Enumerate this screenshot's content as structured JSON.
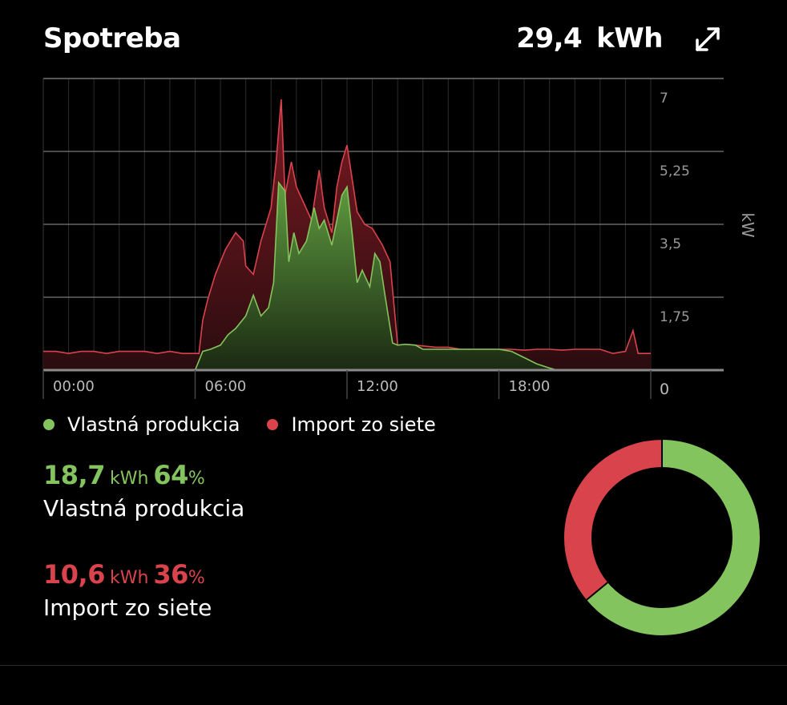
{
  "header": {
    "title": "Spotreba",
    "total_value": "29,4",
    "total_unit": "kWh"
  },
  "icons": {
    "expand": "expand-arrows-icon"
  },
  "colors": {
    "own": "#84c45e",
    "import": "#d9434c",
    "grid": "#6b6b6b",
    "axis_text": "#9a9a9a"
  },
  "legend": {
    "own_label": "Vlastná produkcia",
    "import_label": "Import zo siete"
  },
  "stats": {
    "own": {
      "value": "18,7",
      "unit": "kWh",
      "percent_value": "64",
      "percent_sign": "%",
      "label": "Vlastná produkcia"
    },
    "import": {
      "value": "10,6",
      "unit": "kWh",
      "percent_value": "36",
      "percent_sign": "%",
      "label": "Import zo siete"
    }
  },
  "donut": {
    "own_fraction": 0.64,
    "import_fraction": 0.36
  },
  "chart_data": {
    "type": "area",
    "xlabel": "",
    "ylabel": "kW",
    "ylim": [
      0,
      7
    ],
    "yticks": [
      {
        "value": 0,
        "label": "0"
      },
      {
        "value": 1.75,
        "label": "1,75"
      },
      {
        "value": 3.5,
        "label": "3,5"
      },
      {
        "value": 5.25,
        "label": "5,25"
      },
      {
        "value": 7,
        "label": "7"
      }
    ],
    "xticks": [
      {
        "hour": 0,
        "label": "00:00"
      },
      {
        "hour": 6,
        "label": "06:00"
      },
      {
        "hour": 12,
        "label": "12:00"
      },
      {
        "hour": 18,
        "label": "18:00"
      }
    ],
    "xlim": [
      0,
      24
    ],
    "grid": true,
    "series": [
      {
        "name": "Import zo siete",
        "points": [
          [
            0,
            0.45
          ],
          [
            0.5,
            0.45
          ],
          [
            1,
            0.4
          ],
          [
            1.5,
            0.45
          ],
          [
            2,
            0.45
          ],
          [
            2.5,
            0.4
          ],
          [
            3,
            0.45
          ],
          [
            3.5,
            0.45
          ],
          [
            4,
            0.45
          ],
          [
            4.5,
            0.4
          ],
          [
            5,
            0.45
          ],
          [
            5.5,
            0.4
          ],
          [
            6,
            0.4
          ],
          [
            6.15,
            0.4
          ],
          [
            6.3,
            1.2
          ],
          [
            6.5,
            1.7
          ],
          [
            6.8,
            2.3
          ],
          [
            7.2,
            2.9
          ],
          [
            7.6,
            3.3
          ],
          [
            7.9,
            3.1
          ],
          [
            8,
            2.5
          ],
          [
            8.3,
            2.3
          ],
          [
            8.6,
            3.1
          ],
          [
            9,
            3.9
          ],
          [
            9.2,
            5.0
          ],
          [
            9.4,
            6.5
          ],
          [
            9.55,
            4.2
          ],
          [
            9.8,
            5.0
          ],
          [
            10,
            4.4
          ],
          [
            10.3,
            4.0
          ],
          [
            10.6,
            3.6
          ],
          [
            10.9,
            4.8
          ],
          [
            11.1,
            3.9
          ],
          [
            11.4,
            3.3
          ],
          [
            11.6,
            4.4
          ],
          [
            11.8,
            5.0
          ],
          [
            12,
            5.4
          ],
          [
            12.2,
            4.6
          ],
          [
            12.4,
            3.8
          ],
          [
            12.7,
            3.5
          ],
          [
            13,
            3.4
          ],
          [
            13.4,
            3.0
          ],
          [
            13.7,
            2.6
          ],
          [
            14,
            0.6
          ],
          [
            14.3,
            0.62
          ],
          [
            14.7,
            0.6
          ],
          [
            15,
            0.58
          ],
          [
            15.5,
            0.55
          ],
          [
            16,
            0.55
          ],
          [
            16.5,
            0.5
          ],
          [
            17,
            0.5
          ],
          [
            17.5,
            0.5
          ],
          [
            18,
            0.5
          ],
          [
            18.5,
            0.5
          ],
          [
            19,
            0.48
          ],
          [
            19.5,
            0.5
          ],
          [
            20,
            0.5
          ],
          [
            20.5,
            0.48
          ],
          [
            21,
            0.5
          ],
          [
            21.5,
            0.5
          ],
          [
            22,
            0.5
          ],
          [
            22.5,
            0.4
          ],
          [
            23,
            0.45
          ],
          [
            23.3,
            0.95
          ],
          [
            23.5,
            0.4
          ],
          [
            24,
            0.4
          ]
        ]
      },
      {
        "name": "Vlastná produkcia",
        "points": [
          [
            6,
            0
          ],
          [
            6.3,
            0.45
          ],
          [
            6.6,
            0.5
          ],
          [
            7,
            0.6
          ],
          [
            7.3,
            0.85
          ],
          [
            7.6,
            1.0
          ],
          [
            8,
            1.3
          ],
          [
            8.3,
            1.8
          ],
          [
            8.6,
            1.3
          ],
          [
            8.9,
            1.5
          ],
          [
            9.1,
            2.1
          ],
          [
            9.3,
            4.5
          ],
          [
            9.55,
            4.3
          ],
          [
            9.7,
            2.6
          ],
          [
            9.9,
            3.3
          ],
          [
            10.1,
            2.8
          ],
          [
            10.4,
            3.1
          ],
          [
            10.7,
            3.9
          ],
          [
            10.9,
            3.4
          ],
          [
            11.1,
            3.6
          ],
          [
            11.4,
            3.0
          ],
          [
            11.6,
            3.6
          ],
          [
            11.8,
            4.2
          ],
          [
            12,
            4.4
          ],
          [
            12.2,
            3.3
          ],
          [
            12.4,
            2.1
          ],
          [
            12.6,
            2.4
          ],
          [
            12.9,
            2.0
          ],
          [
            13.1,
            2.8
          ],
          [
            13.3,
            2.6
          ],
          [
            13.5,
            1.8
          ],
          [
            13.8,
            0.65
          ],
          [
            14,
            0.6
          ],
          [
            14.3,
            0.62
          ],
          [
            14.7,
            0.6
          ],
          [
            15,
            0.5
          ],
          [
            15.5,
            0.5
          ],
          [
            16,
            0.5
          ],
          [
            16.5,
            0.5
          ],
          [
            17,
            0.5
          ],
          [
            17.5,
            0.5
          ],
          [
            18,
            0.5
          ],
          [
            18.5,
            0.45
          ],
          [
            19,
            0.3
          ],
          [
            19.5,
            0.15
          ],
          [
            20,
            0.05
          ],
          [
            20.3,
            0
          ]
        ]
      }
    ]
  }
}
